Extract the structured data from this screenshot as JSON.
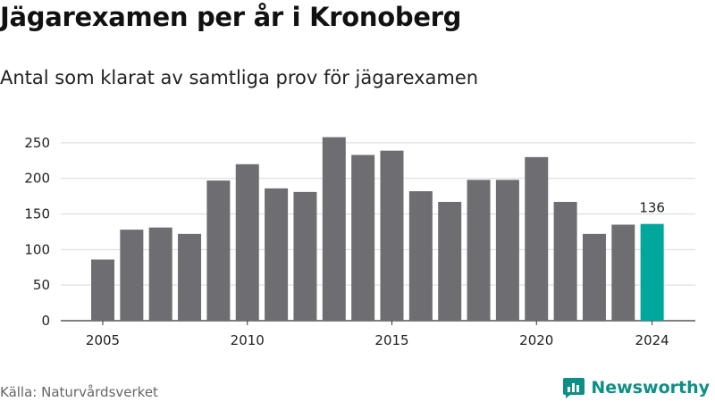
{
  "header": {
    "title": "Jägarexamen per år i Kronoberg",
    "subtitle": "Antal som klarat av samtliga prov för jägarexamen"
  },
  "footer": {
    "source": "Källa: Naturvårdsverket",
    "brand": "Newsworthy",
    "brand_icon": "newsworthy-logo-icon"
  },
  "colors": {
    "bar": "#6e6d72",
    "highlight": "#00a79d",
    "grid": "#d9d9d9",
    "brand": "#0e8f86"
  },
  "chart_data": {
    "type": "bar",
    "title": "Jägarexamen per år i Kronoberg",
    "subtitle": "Antal som klarat av samtliga prov för jägarexamen",
    "categories": [
      2005,
      2006,
      2007,
      2008,
      2009,
      2010,
      2011,
      2012,
      2013,
      2014,
      2015,
      2016,
      2017,
      2018,
      2019,
      2020,
      2021,
      2022,
      2023,
      2024
    ],
    "values": [
      86,
      128,
      131,
      122,
      197,
      220,
      186,
      181,
      258,
      233,
      239,
      182,
      167,
      198,
      198,
      230,
      167,
      122,
      135,
      136
    ],
    "highlight_category": 2024,
    "data_labels": [
      {
        "category": 2024,
        "text": "136"
      }
    ],
    "xticks": [
      "2005",
      "2010",
      "2015",
      "2020",
      "2024"
    ],
    "yticks": [
      "0",
      "50",
      "100",
      "150",
      "200",
      "250"
    ],
    "ylim": [
      0,
      275
    ],
    "grid": "horizontal",
    "xlabel": "",
    "ylabel": ""
  }
}
